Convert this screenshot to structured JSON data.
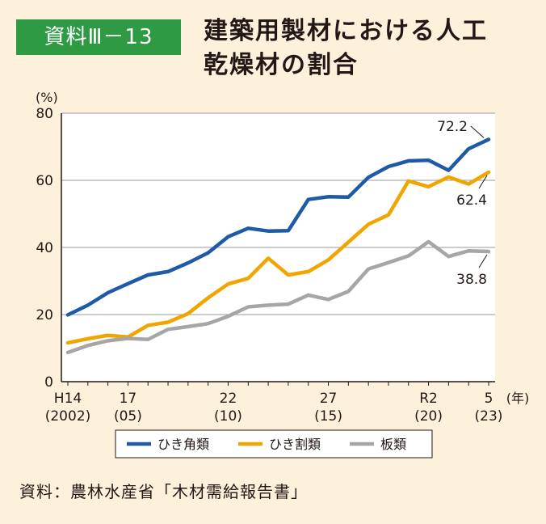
{
  "header": {
    "badge": "資料Ⅲ－13",
    "title_line1": "建築用製材における人工",
    "title_line2": "乾燥材の割合"
  },
  "source": "資料：農林水産省「木材需給報告書」",
  "colors": {
    "background": "#fdf1dc",
    "plot_background": "#ffffff",
    "badge": "#2f9a44",
    "series_hikikaku": "#1f5aa6",
    "series_hikiwari": "#f0a500",
    "series_ita": "#a6a6a6"
  },
  "chart_data": {
    "type": "line",
    "y_unit": "(%)",
    "x_unit": "(年)",
    "ylim": [
      0,
      80
    ],
    "yticks": [
      0,
      20,
      40,
      60,
      80
    ],
    "x": [
      2002,
      2003,
      2004,
      2005,
      2006,
      2007,
      2008,
      2009,
      2010,
      2011,
      2012,
      2013,
      2014,
      2015,
      2016,
      2017,
      2018,
      2019,
      2020,
      2021,
      2022,
      2023
    ],
    "x_ticks": [
      {
        "x": 2002,
        "label": "H14",
        "sublabel": "(2002)"
      },
      {
        "x": 2005,
        "label": "17",
        "sublabel": "(05)"
      },
      {
        "x": 2010,
        "label": "22",
        "sublabel": "(10)"
      },
      {
        "x": 2015,
        "label": "27",
        "sublabel": "(15)"
      },
      {
        "x": 2020,
        "label": "R2",
        "sublabel": "(20)"
      },
      {
        "x": 2023,
        "label": "5",
        "sublabel": "(23)"
      }
    ],
    "grid": "horizontal",
    "legend_position": "bottom",
    "series": [
      {
        "name": "ひき角類",
        "color": "#1f5aa6",
        "values": [
          19.9,
          22.8,
          26.5,
          29.2,
          31.8,
          32.8,
          35.4,
          38.4,
          43.2,
          45.7,
          44.9,
          45.0,
          54.3,
          55.1,
          55.0,
          60.9,
          64.1,
          65.8,
          66.0,
          63.0,
          69.4,
          72.2
        ],
        "end_label": "72.2"
      },
      {
        "name": "ひき割類",
        "color": "#f0a500",
        "values": [
          11.6,
          12.8,
          13.8,
          13.3,
          16.8,
          17.7,
          20.3,
          25.0,
          29.1,
          30.8,
          36.8,
          31.8,
          32.8,
          36.3,
          41.6,
          46.9,
          49.7,
          59.8,
          58.1,
          61.0,
          58.9,
          62.4
        ],
        "end_label": "62.4"
      },
      {
        "name": "板類",
        "color": "#a6a6a6",
        "values": [
          8.7,
          10.8,
          12.2,
          12.9,
          12.6,
          15.6,
          16.4,
          17.3,
          19.5,
          22.3,
          22.8,
          23.1,
          25.8,
          24.5,
          26.9,
          33.6,
          35.5,
          37.5,
          41.7,
          37.3,
          39.0,
          38.8
        ],
        "end_label": "38.8"
      }
    ]
  }
}
